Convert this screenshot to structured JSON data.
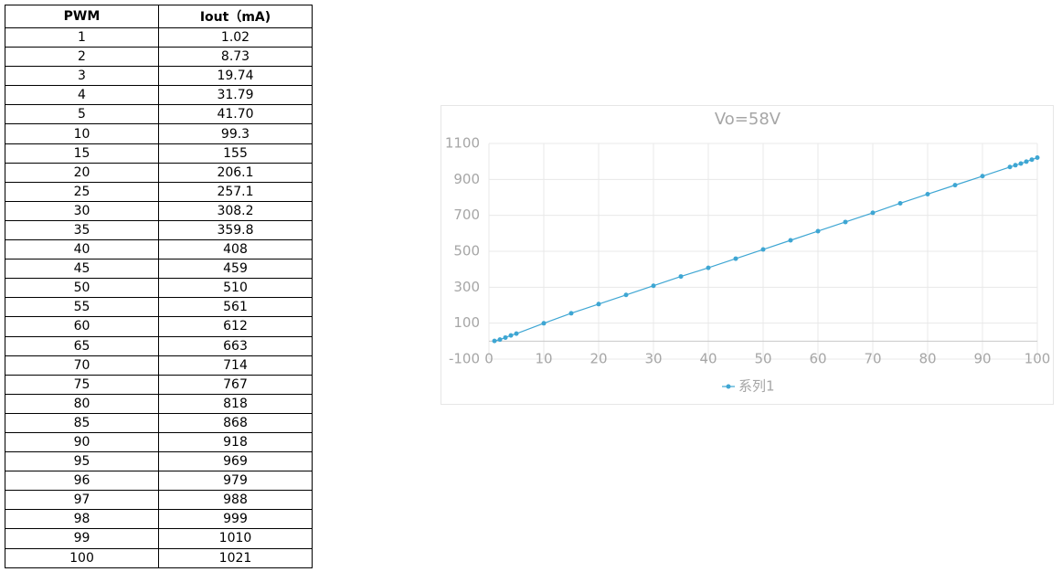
{
  "table": {
    "header": [
      "PWM",
      "Iout（mA)"
    ],
    "rows": [
      [
        "1",
        "1.02"
      ],
      [
        "2",
        "8.73"
      ],
      [
        "3",
        "19.74"
      ],
      [
        "4",
        "31.79"
      ],
      [
        "5",
        "41.70"
      ],
      [
        "10",
        "99.3"
      ],
      [
        "15",
        "155"
      ],
      [
        "20",
        "206.1"
      ],
      [
        "25",
        "257.1"
      ],
      [
        "30",
        "308.2"
      ],
      [
        "35",
        "359.8"
      ],
      [
        "40",
        "408"
      ],
      [
        "45",
        "459"
      ],
      [
        "50",
        "510"
      ],
      [
        "55",
        "561"
      ],
      [
        "60",
        "612"
      ],
      [
        "65",
        "663"
      ],
      [
        "70",
        "714"
      ],
      [
        "75",
        "767"
      ],
      [
        "80",
        "818"
      ],
      [
        "85",
        "868"
      ],
      [
        "90",
        "918"
      ],
      [
        "95",
        "969"
      ],
      [
        "96",
        "979"
      ],
      [
        "97",
        "988"
      ],
      [
        "98",
        "999"
      ],
      [
        "99",
        "1010"
      ],
      [
        "100",
        "1021"
      ]
    ]
  },
  "chart_data": {
    "type": "line",
    "title": "Vo=58V",
    "x": [
      1,
      2,
      3,
      4,
      5,
      10,
      15,
      20,
      25,
      30,
      35,
      40,
      45,
      50,
      55,
      60,
      65,
      70,
      75,
      80,
      85,
      90,
      95,
      96,
      97,
      98,
      99,
      100
    ],
    "series": [
      {
        "name": "系列1",
        "color": "#3ea6d3",
        "values": [
          1.02,
          8.73,
          19.74,
          31.79,
          41.7,
          99.3,
          155,
          206.1,
          257.1,
          308.2,
          359.8,
          408,
          459,
          510,
          561,
          612,
          663,
          714,
          767,
          818,
          868,
          918,
          969,
          979,
          988,
          999,
          1010,
          1021
        ]
      }
    ],
    "xlim": [
      0,
      100
    ],
    "xticks": [
      0,
      10,
      20,
      30,
      40,
      50,
      60,
      70,
      80,
      90,
      100
    ],
    "ylim": [
      -100,
      1100
    ],
    "yticks": [
      -100,
      100,
      300,
      500,
      700,
      900,
      1100
    ],
    "grid": true,
    "legend": "bottom"
  }
}
